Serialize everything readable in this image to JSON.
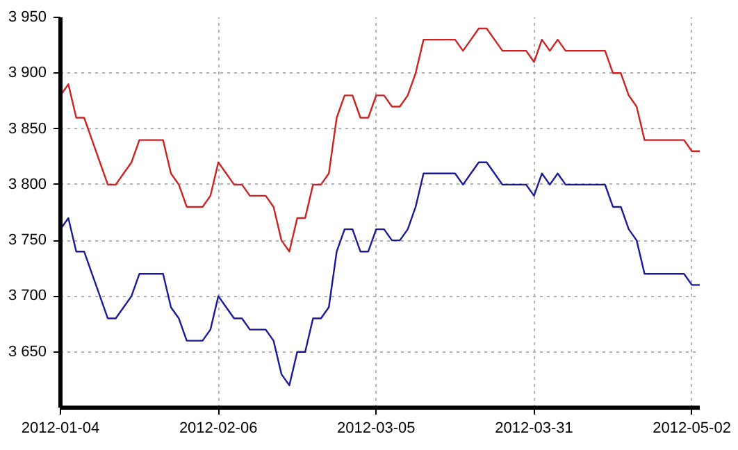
{
  "chart_data": {
    "type": "line",
    "categories": [
      "2012-01-04",
      null,
      null,
      null,
      null,
      null,
      null,
      null,
      null,
      null,
      null,
      null,
      null,
      null,
      null,
      null,
      null,
      null,
      null,
      null,
      "2012-02-06",
      null,
      null,
      null,
      null,
      null,
      null,
      null,
      null,
      null,
      null,
      null,
      null,
      null,
      null,
      null,
      null,
      null,
      null,
      null,
      "2012-03-05",
      null,
      null,
      null,
      null,
      null,
      null,
      null,
      null,
      null,
      null,
      null,
      null,
      null,
      null,
      null,
      null,
      null,
      null,
      null,
      "2012-03-31",
      null,
      null,
      null,
      null,
      null,
      null,
      null,
      null,
      null,
      null,
      null,
      null,
      null,
      null,
      null,
      null,
      null,
      null,
      null,
      "2012-05-02",
      null
    ],
    "series": [
      {
        "color": "#cc2222",
        "values": [
          3880,
          3890,
          3860,
          3860,
          3840,
          3820,
          3800,
          3800,
          3810,
          3820,
          3840,
          3840,
          3840,
          3840,
          3810,
          3800,
          3780,
          3780,
          3780,
          3790,
          3820,
          3810,
          3800,
          3800,
          3790,
          3790,
          3790,
          3780,
          3750,
          3740,
          3770,
          3770,
          3800,
          3800,
          3810,
          3860,
          3880,
          3880,
          3860,
          3860,
          3880,
          3880,
          3870,
          3870,
          3880,
          3900,
          3930,
          3930,
          3930,
          3930,
          3930,
          3920,
          3930,
          3940,
          3940,
          3930,
          3920,
          3920,
          3920,
          3920,
          3910,
          3930,
          3920,
          3930,
          3920,
          3920,
          3920,
          3920,
          3920,
          3920,
          3900,
          3900,
          3880,
          3870,
          3840,
          3840,
          3840,
          3840,
          3840,
          3840,
          3830,
          3830
        ]
      },
      {
        "color": "#1a1a99",
        "values": [
          3760,
          3770,
          3740,
          3740,
          3720,
          3700,
          3680,
          3680,
          3690,
          3700,
          3720,
          3720,
          3720,
          3720,
          3690,
          3680,
          3660,
          3660,
          3660,
          3670,
          3700,
          3690,
          3680,
          3680,
          3670,
          3670,
          3670,
          3660,
          3630,
          3620,
          3650,
          3650,
          3680,
          3680,
          3690,
          3740,
          3760,
          3760,
          3740,
          3740,
          3760,
          3760,
          3750,
          3750,
          3760,
          3780,
          3810,
          3810,
          3810,
          3810,
          3810,
          3800,
          3810,
          3820,
          3820,
          3810,
          3800,
          3800,
          3800,
          3800,
          3790,
          3810,
          3800,
          3810,
          3800,
          3800,
          3800,
          3800,
          3800,
          3800,
          3780,
          3780,
          3760,
          3750,
          3720,
          3720,
          3720,
          3720,
          3720,
          3720,
          3710,
          3710
        ]
      }
    ],
    "ylim": [
      3600,
      3950
    ],
    "yticks": [
      {
        "value": 3650,
        "label": "3 650"
      },
      {
        "value": 3700,
        "label": "3 700"
      },
      {
        "value": 3750,
        "label": "3 750"
      },
      {
        "value": 3800,
        "label": "3 800"
      },
      {
        "value": 3850,
        "label": "3 850"
      },
      {
        "value": 3900,
        "label": "3 900"
      },
      {
        "value": 3950,
        "label": "3 950"
      }
    ],
    "grid": true,
    "line_style": "solid"
  }
}
